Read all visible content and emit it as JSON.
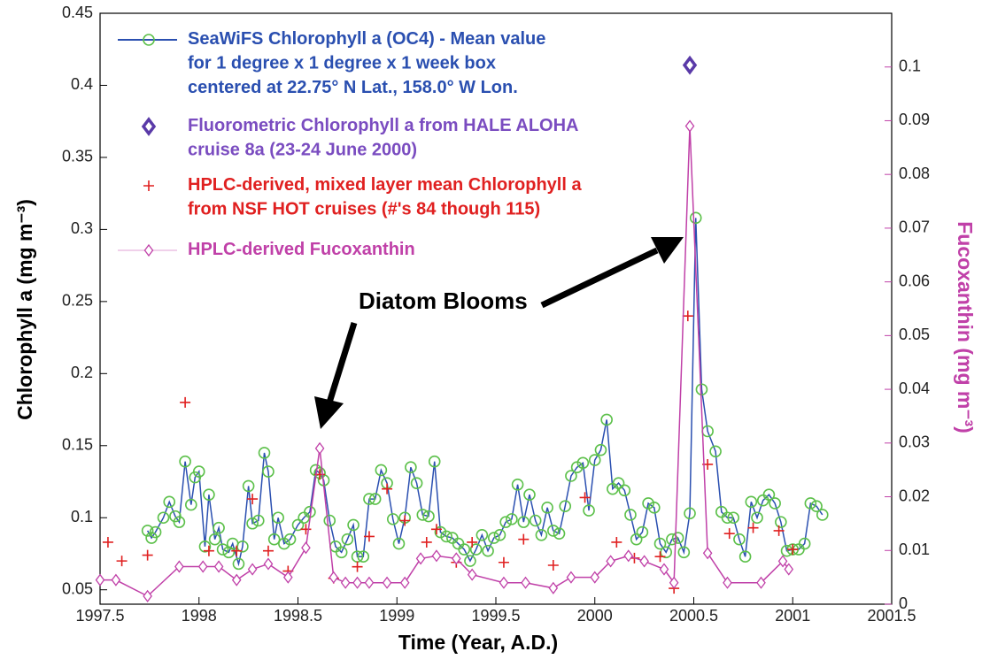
{
  "chart_data": {
    "type": "line",
    "x_label": "Time (Year, A.D.)",
    "y_label": "Chlorophyll a (mg m⁻³)",
    "y2_label": "Fucoxanthin (mg m⁻³)",
    "annotation": "Diatom Blooms",
    "xlim": [
      1997.5,
      2001.5
    ],
    "xticks": [
      1997.5,
      1998,
      1998.5,
      1999,
      1999.5,
      2000,
      2000.5,
      2001,
      2001.5
    ],
    "ylim": [
      0.04,
      0.45
    ],
    "yticks": [
      0.05,
      0.1,
      0.15,
      0.2,
      0.25,
      0.3,
      0.35,
      0.4,
      0.45
    ],
    "y2lim": [
      0,
      0.11
    ],
    "y2ticks": [
      0,
      0.01,
      0.02,
      0.03,
      0.04,
      0.05,
      0.06,
      0.07,
      0.08,
      0.09,
      0.1
    ],
    "series": [
      {
        "name": "SeaWiFS Chlorophyll a (OC4) - Mean value\nfor 1 degree  x 1 degree x 1 week box\ncentered at 22.75° N Lat., 158.0° W Lon.",
        "color": "#2a4fb0",
        "marker_color": "#5cc04a",
        "marker": "circle",
        "line": true,
        "x": [
          1997.74,
          1997.76,
          1997.78,
          1997.82,
          1997.85,
          1997.88,
          1997.9,
          1997.93,
          1997.96,
          1997.98,
          1998.0,
          1998.03,
          1998.05,
          1998.08,
          1998.1,
          1998.12,
          1998.15,
          1998.17,
          1998.2,
          1998.22,
          1998.25,
          1998.27,
          1998.3,
          1998.33,
          1998.35,
          1998.38,
          1998.4,
          1998.43,
          1998.46,
          1998.5,
          1998.53,
          1998.56,
          1998.59,
          1998.61,
          1998.63,
          1998.66,
          1998.69,
          1998.72,
          1998.75,
          1998.78,
          1998.8,
          1998.83,
          1998.86,
          1998.89,
          1998.92,
          1998.95,
          1998.98,
          1999.01,
          1999.04,
          1999.07,
          1999.1,
          1999.13,
          1999.16,
          1999.19,
          1999.22,
          1999.25,
          1999.28,
          1999.31,
          1999.34,
          1999.37,
          1999.4,
          1999.43,
          1999.46,
          1999.49,
          1999.52,
          1999.55,
          1999.58,
          1999.61,
          1999.64,
          1999.67,
          1999.7,
          1999.73,
          1999.76,
          1999.79,
          1999.82,
          1999.85,
          1999.88,
          1999.91,
          1999.94,
          1999.97,
          2000.0,
          2000.03,
          2000.06,
          2000.09,
          2000.12,
          2000.15,
          2000.18,
          2000.21,
          2000.24,
          2000.27,
          2000.3,
          2000.33,
          2000.36,
          2000.39,
          2000.42,
          2000.45,
          2000.48,
          2000.51,
          2000.54,
          2000.57,
          2000.61,
          2000.64,
          2000.67,
          2000.7,
          2000.73,
          2000.76,
          2000.79,
          2000.82,
          2000.85,
          2000.88,
          2000.91,
          2000.94,
          2000.97,
          2001.0,
          2001.03,
          2001.06,
          2001.09,
          2001.12,
          2001.15
        ],
        "values": [
          0.091,
          0.086,
          0.09,
          0.1,
          0.111,
          0.101,
          0.097,
          0.139,
          0.109,
          0.128,
          0.132,
          0.08,
          0.116,
          0.085,
          0.093,
          0.078,
          0.076,
          0.082,
          0.068,
          0.08,
          0.122,
          0.096,
          0.098,
          0.145,
          0.132,
          0.085,
          0.1,
          0.082,
          0.085,
          0.095,
          0.1,
          0.104,
          0.133,
          0.131,
          0.126,
          0.098,
          0.08,
          0.076,
          0.085,
          0.095,
          0.073,
          0.073,
          0.113,
          0.113,
          0.133,
          0.124,
          0.099,
          0.082,
          0.1,
          0.135,
          0.124,
          0.102,
          0.101,
          0.139,
          0.09,
          0.087,
          0.086,
          0.082,
          0.078,
          0.07,
          0.078,
          0.088,
          0.077,
          0.086,
          0.088,
          0.097,
          0.099,
          0.123,
          0.097,
          0.116,
          0.098,
          0.088,
          0.107,
          0.091,
          0.089,
          0.108,
          0.129,
          0.135,
          0.138,
          0.105,
          0.14,
          0.147,
          0.168,
          0.12,
          0.124,
          0.119,
          0.102,
          0.085,
          0.09,
          0.11,
          0.107,
          0.082,
          0.076,
          0.085,
          0.086,
          0.076,
          0.103,
          0.308,
          0.189,
          0.16,
          0.146,
          0.104,
          0.1,
          0.1,
          0.085,
          0.073,
          0.111,
          0.1,
          0.112,
          0.116,
          0.11,
          0.097,
          0.077,
          0.078,
          0.078,
          0.082,
          0.11,
          0.108,
          0.102
        ]
      },
      {
        "name": "Fluorometric Chlorophyll a from HALE ALOHA\ncruise 8a (23-24 June 2000)",
        "color": "#7a4cc0",
        "marker_color": "#5a3aa8",
        "marker": "diamond-bold",
        "line": false,
        "x": [
          2000.48
        ],
        "values": [
          0.414
        ]
      },
      {
        "name": "HPLC-derived, mixed layer mean Chlorophyll a\nfrom NSF HOT cruises (#'s 84 though 115)",
        "color": "#e02020",
        "marker_color": "#e02020",
        "marker": "plus",
        "line": false,
        "x": [
          1997.54,
          1997.61,
          1997.74,
          1997.93,
          1998.05,
          1998.19,
          1998.27,
          1998.35,
          1998.45,
          1998.54,
          1998.61,
          1998.68,
          1998.8,
          1998.86,
          1998.95,
          1999.04,
          1999.15,
          1999.2,
          1999.3,
          1999.38,
          1999.54,
          1999.64,
          1999.79,
          1999.95,
          2000.11,
          2000.2,
          2000.33,
          2000.4,
          2000.47,
          2000.57,
          2000.68,
          2000.8,
          2000.93,
          2001.0
        ],
        "values": [
          0.083,
          0.07,
          0.074,
          0.18,
          0.077,
          0.077,
          0.113,
          0.077,
          0.063,
          0.092,
          0.13,
          0.058,
          0.066,
          0.087,
          0.12,
          0.098,
          0.083,
          0.092,
          0.069,
          0.083,
          0.069,
          0.085,
          0.067,
          0.114,
          0.083,
          0.072,
          0.073,
          0.051,
          0.24,
          0.137,
          0.089,
          0.093,
          0.091,
          0.078
        ]
      },
      {
        "name": "HPLC-derived Fucoxanthin",
        "color": "#c040a8",
        "marker_color": "#c040a8",
        "marker": "diamond",
        "line": true,
        "axis": "y2",
        "x": [
          1997.5,
          1997.58,
          1997.74,
          1997.9,
          1998.02,
          1998.1,
          1998.19,
          1998.27,
          1998.35,
          1998.45,
          1998.54,
          1998.61,
          1998.68,
          1998.74,
          1998.8,
          1998.86,
          1998.95,
          1999.04,
          1999.12,
          1999.2,
          1999.3,
          1999.38,
          1999.54,
          1999.65,
          1999.79,
          1999.88,
          2000.0,
          2000.08,
          2000.17,
          2000.25,
          2000.35,
          2000.4,
          2000.48,
          2000.57,
          2000.67,
          2000.84,
          2000.95,
          2000.98
        ],
        "values": [
          0.0045,
          0.0045,
          0.0015,
          0.007,
          0.007,
          0.007,
          0.0045,
          0.0065,
          0.0075,
          0.005,
          0.0105,
          0.029,
          0.005,
          0.004,
          0.004,
          0.004,
          0.004,
          0.004,
          0.0085,
          0.009,
          0.0085,
          0.0055,
          0.004,
          0.004,
          0.003,
          0.005,
          0.005,
          0.008,
          0.009,
          0.008,
          0.0065,
          0.004,
          0.089,
          0.0095,
          0.004,
          0.004,
          0.008,
          0.0065
        ]
      }
    ]
  }
}
